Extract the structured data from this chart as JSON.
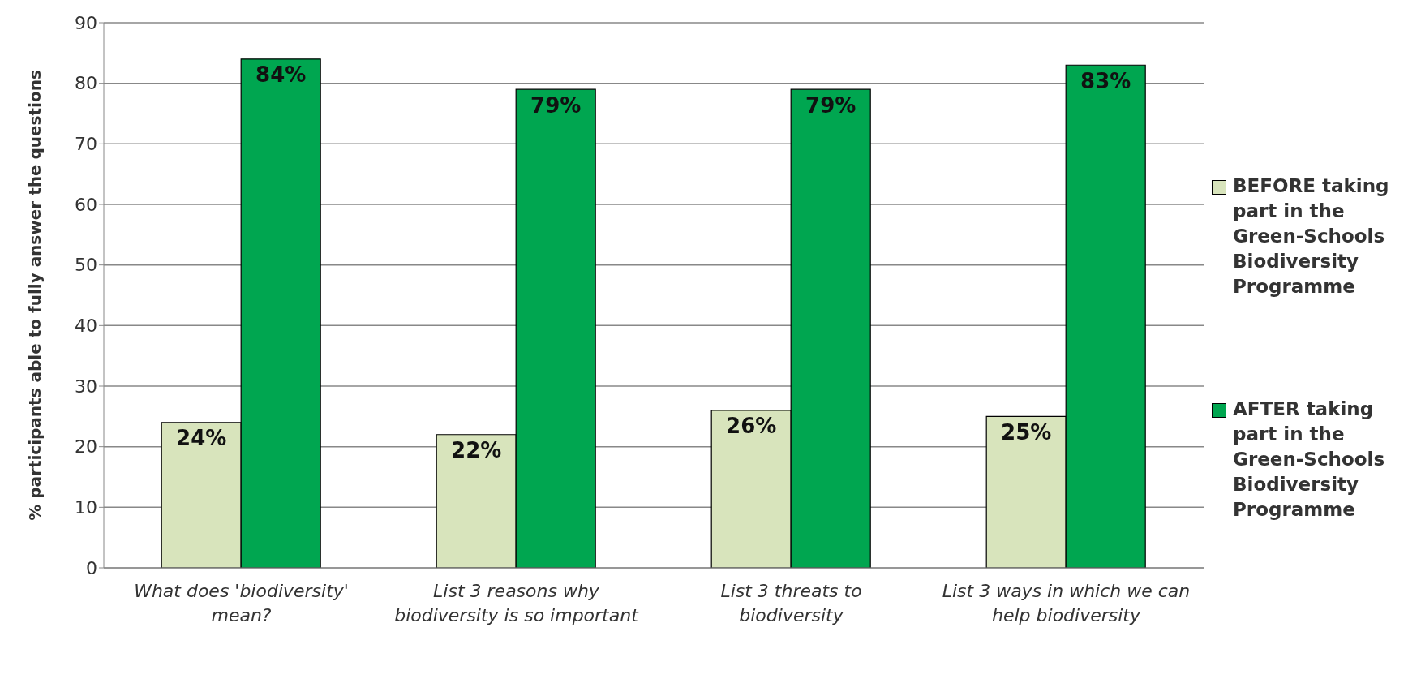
{
  "chart_data": {
    "type": "bar",
    "ylabel": "% participants able to fully answer the questions",
    "categories": [
      "What does 'biodiversity' mean?",
      "List 3 reasons why biodiversity is so important",
      "List 3 threats to biodiversity",
      "List 3 ways in which we can help biodiversity"
    ],
    "series": [
      {
        "name": "BEFORE taking part in the Green-Schools Biodiversity Programme",
        "color": "#d8e4bc",
        "values": [
          24,
          22,
          26,
          25
        ],
        "value_labels": [
          "24%",
          "22%",
          "26%",
          "25%"
        ]
      },
      {
        "name": "AFTER taking part in the Green-Schools Biodiversity Programme",
        "color": "#00a650",
        "values": [
          84,
          79,
          79,
          83
        ],
        "value_labels": [
          "84%",
          "79%",
          "79%",
          "83%"
        ]
      }
    ],
    "ylim": [
      0,
      90
    ],
    "yticks": [
      0,
      10,
      20,
      30,
      40,
      50,
      60,
      70,
      80,
      90
    ],
    "grid": "y",
    "legend": "right"
  }
}
